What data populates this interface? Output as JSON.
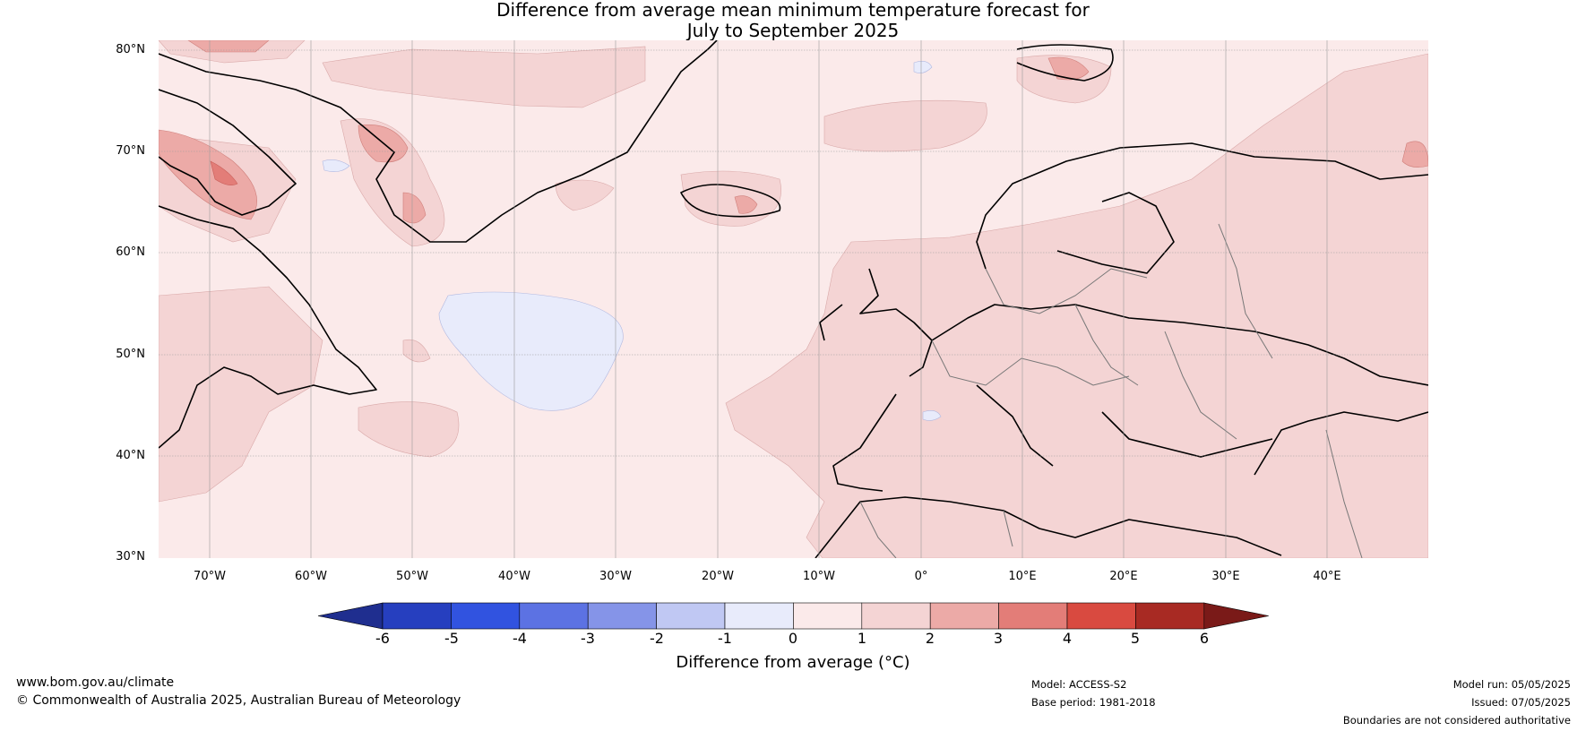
{
  "title": {
    "line1": "Difference from average mean minimum temperature forecast for",
    "line2": "July to September 2025"
  },
  "map": {
    "region": "North Atlantic and Europe",
    "lat_labels": [
      "80°N",
      "70°N",
      "60°N",
      "50°N",
      "40°N",
      "30°N"
    ],
    "lon_labels": [
      "70°W",
      "60°W",
      "50°W",
      "40°W",
      "30°W",
      "20°W",
      "10°W",
      "0°",
      "10°E",
      "20°E",
      "30°E",
      "40°E"
    ]
  },
  "colorbar": {
    "title": "Difference from average (°C)",
    "ticks": [
      "-6",
      "-5",
      "-4",
      "-3",
      "-2",
      "-1",
      "0",
      "1",
      "2",
      "3",
      "4",
      "5",
      "6"
    ],
    "colors": [
      "#1f2e8f",
      "#263fbf",
      "#3153e0",
      "#5c72e3",
      "#8594e8",
      "#c0c8f3",
      "#e8ebfb",
      "#fbeaea",
      "#f4d4d4",
      "#ecaaa7",
      "#e37d78",
      "#d94a40",
      "#a82a23",
      "#7a1a18"
    ]
  },
  "footer": {
    "site": "www.bom.gov.au/climate",
    "copyright": "© Commonwealth of Australia 2025, Australian Bureau of Meteorology",
    "model": "Model: ACCESS-S2",
    "base_period": "Base period: 1981-2018",
    "model_run": "Model run: 05/05/2025",
    "issued": "Issued: 07/05/2025",
    "disclaimer": "Boundaries are not considered authoritative"
  }
}
